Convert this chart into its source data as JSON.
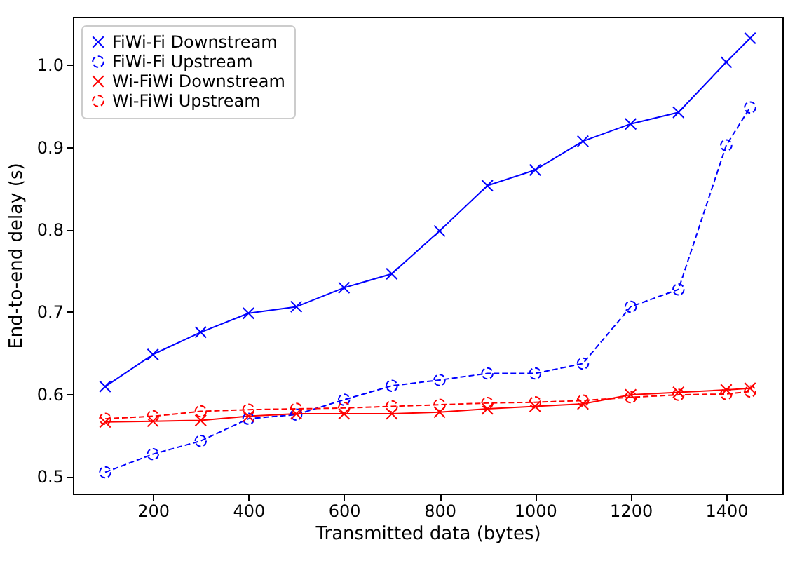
{
  "chart_data": {
    "type": "line",
    "xlabel": "Transmitted data (bytes)",
    "ylabel": "End-to-end delay (s)",
    "x": [
      100,
      200,
      300,
      400,
      500,
      600,
      700,
      800,
      900,
      1000,
      1100,
      1200,
      1300,
      1400,
      1450
    ],
    "series": [
      {
        "name": "FiWi-Fi Downstream",
        "color": "#0000ff",
        "marker": "cross",
        "line_style": "solid",
        "values": [
          0.609,
          0.648,
          0.675,
          0.698,
          0.706,
          0.729,
          0.746,
          0.798,
          0.853,
          0.872,
          0.907,
          0.928,
          0.942,
          1.003,
          1.032
        ]
      },
      {
        "name": "FiWi-Fi Upstream",
        "color": "#0000ff",
        "marker": "circle",
        "line_style": "dashed",
        "values": [
          0.505,
          0.527,
          0.543,
          0.57,
          0.575,
          0.593,
          0.61,
          0.617,
          0.625,
          0.625,
          0.637,
          0.706,
          0.727,
          0.902,
          0.948
        ]
      },
      {
        "name": "Wi-FiWi Downstream",
        "color": "#ff0000",
        "marker": "cross",
        "line_style": "solid",
        "values": [
          0.566,
          0.567,
          0.568,
          0.573,
          0.576,
          0.576,
          0.576,
          0.578,
          0.582,
          0.585,
          0.588,
          0.599,
          0.602,
          0.605,
          0.607
        ]
      },
      {
        "name": "Wi-FiWi Upstream",
        "color": "#ff0000",
        "marker": "circle",
        "line_style": "dashed",
        "values": [
          0.57,
          0.573,
          0.579,
          0.581,
          0.582,
          0.583,
          0.585,
          0.587,
          0.589,
          0.59,
          0.592,
          0.596,
          0.599,
          0.6,
          0.603
        ]
      }
    ],
    "xlim": [
      32.5,
      1517.5
    ],
    "xticks": [
      200,
      400,
      600,
      800,
      1000,
      1200,
      1400
    ],
    "ylim": [
      0.479,
      1.058
    ],
    "yticks": [
      0.5,
      0.6,
      0.7,
      0.8,
      0.9,
      {
        "value": 1.0,
        "label": "1.0"
      }
    ],
    "grid": false,
    "legend": "top left"
  }
}
